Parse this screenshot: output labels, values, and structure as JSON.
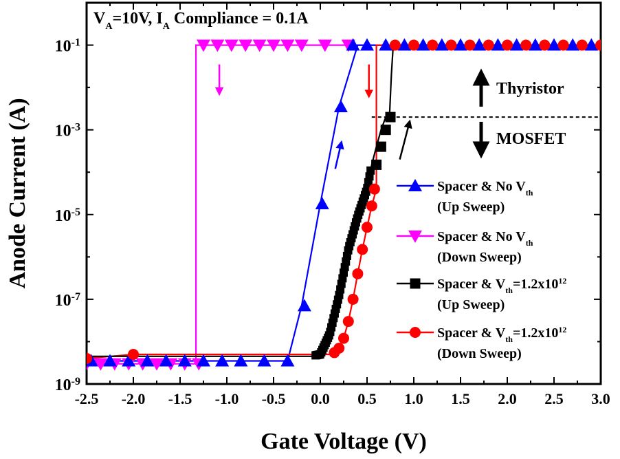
{
  "chart_data": {
    "type": "line",
    "title": "",
    "annotation_top": {
      "parts": [
        {
          "t": "V"
        },
        {
          "t": "A",
          "sub": true
        },
        {
          "t": "=10V, I"
        },
        {
          "t": "A",
          "sub": true
        },
        {
          "t": " Compliance = 0.1A"
        }
      ]
    },
    "xlabel": "Gate Voltage (V)",
    "ylabel": "Anode Current (A)",
    "xlim": [
      -2.5,
      3.0
    ],
    "ylim": [
      1e-09,
      1
    ],
    "yscale": "log",
    "x_ticks": [
      "-2.5",
      "-2.0",
      "-1.5",
      "-1.0",
      "-0.5",
      "0.0",
      "0.5",
      "1.0",
      "1.5",
      "2.0",
      "2.5",
      "3.0"
    ],
    "y_ticks": [
      {
        "base": "10",
        "exp": "-9"
      },
      {
        "base": "10",
        "exp": "-7"
      },
      {
        "base": "10",
        "exp": "-5"
      },
      {
        "base": "10",
        "exp": "-3"
      },
      {
        "base": "10",
        "exp": "-1"
      }
    ],
    "threshold_line": {
      "y": 0.002,
      "x_start": 0.55,
      "x_end": 3.0,
      "style": "dashed"
    },
    "region_labels": {
      "above": "Thyristor",
      "below": "MOSFET"
    },
    "series": [
      {
        "name_parts": [
          {
            "t": "Spacer & No V"
          },
          {
            "t": "th",
            "sub": true
          }
        ],
        "name_line2": "(Up Sweep)",
        "color": "#0000ff",
        "marker": "triangle-up",
        "x": [
          -2.5,
          -2.3,
          -2.1,
          -1.9,
          -1.7,
          -1.5,
          -1.3,
          -1.1,
          -0.9,
          -0.7,
          -0.5,
          -0.35,
          -0.2,
          0.0,
          0.2,
          0.4,
          0.6,
          0.8,
          1.0,
          1.2,
          1.4,
          1.6,
          1.8,
          2.0,
          2.2,
          2.4,
          2.6,
          2.8,
          3.0
        ],
        "y": [
          3.5e-09,
          3.5e-09,
          3.5e-09,
          3.5e-09,
          3.5e-09,
          3.5e-09,
          3.5e-09,
          3.5e-09,
          3.5e-09,
          3.5e-09,
          3.5e-09,
          3.5e-09,
          7e-08,
          1.8e-05,
          0.0035,
          0.1,
          0.1,
          0.1,
          0.1,
          0.1,
          0.1,
          0.1,
          0.1,
          0.1,
          0.1,
          0.1,
          0.1,
          0.1,
          0.1
        ],
        "markers": [
          [
            -2.45,
            3.5e-09
          ],
          [
            -2.25,
            3.5e-09
          ],
          [
            -2.05,
            3.5e-09
          ],
          [
            -1.85,
            3.5e-09
          ],
          [
            -1.65,
            3.5e-09
          ],
          [
            -1.45,
            3.5e-09
          ],
          [
            -1.25,
            3.5e-09
          ],
          [
            -1.05,
            3.5e-09
          ],
          [
            -0.85,
            3.5e-09
          ],
          [
            -0.6,
            3.5e-09
          ],
          [
            -0.35,
            3.5e-09
          ],
          [
            -0.17,
            7e-08
          ],
          [
            0.02,
            1.8e-05
          ],
          [
            0.22,
            0.0035
          ],
          [
            0.35,
            0.1
          ],
          [
            0.5,
            0.1
          ],
          [
            0.7,
            0.1
          ],
          [
            0.9,
            0.1
          ],
          [
            1.1,
            0.1
          ],
          [
            1.3,
            0.1
          ],
          [
            1.5,
            0.1
          ],
          [
            1.7,
            0.1
          ],
          [
            1.9,
            0.1
          ],
          [
            2.1,
            0.1
          ],
          [
            2.3,
            0.1
          ],
          [
            2.5,
            0.1
          ],
          [
            2.7,
            0.1
          ],
          [
            2.9,
            0.1
          ]
        ]
      },
      {
        "name_parts": [
          {
            "t": "Spacer & No V"
          },
          {
            "t": "th",
            "sub": true
          }
        ],
        "name_line2": "(Down Sweep)",
        "color": "#ff00ff",
        "marker": "triangle-down",
        "x": [
          3.0,
          2.5,
          2.0,
          1.5,
          1.0,
          0.5,
          0.0,
          -0.5,
          -1.0,
          -1.25,
          -1.25,
          -1.33,
          -1.33,
          -1.5,
          -2.0,
          -2.5
        ],
        "y": [
          0.1,
          0.1,
          0.1,
          0.1,
          0.1,
          0.1,
          0.1,
          0.1,
          0.1,
          0.1,
          0.1,
          0.1,
          3e-09,
          3e-09,
          3e-09,
          3e-09
        ],
        "markers": [
          [
            -1.25,
            0.1
          ],
          [
            -1.1,
            0.1
          ],
          [
            -0.95,
            0.1
          ],
          [
            -0.8,
            0.1
          ],
          [
            -0.65,
            0.1
          ],
          [
            -0.5,
            0.1
          ],
          [
            -0.35,
            0.1
          ],
          [
            -0.2,
            0.1
          ],
          [
            0.05,
            0.1
          ],
          [
            0.3,
            0.1
          ],
          [
            -1.3,
            3e-09
          ],
          [
            -1.45,
            3e-09
          ],
          [
            -1.6,
            3e-09
          ],
          [
            -1.75,
            3e-09
          ],
          [
            -1.9,
            3e-09
          ],
          [
            -2.05,
            3e-09
          ],
          [
            -2.2,
            3e-09
          ],
          [
            -2.35,
            3e-09
          ],
          [
            -2.5,
            3e-09
          ]
        ]
      },
      {
        "name_parts": [
          {
            "t": "Spacer & V"
          },
          {
            "t": "th",
            "sub": true
          },
          {
            "t": "=1.2x10"
          },
          {
            "t": "12",
            "sup": true
          }
        ],
        "name_line2": "(Up Sweep)",
        "color": "#000000",
        "marker": "square",
        "x": [
          -2.5,
          -2.0,
          -1.5,
          -1.0,
          -0.5,
          -0.1,
          0.0,
          0.1,
          0.2,
          0.3,
          0.4,
          0.5,
          0.55,
          0.6,
          0.65,
          0.7,
          0.74,
          0.76,
          0.78,
          0.8,
          1.0,
          1.5,
          2.0,
          2.5,
          3.0
        ],
        "y": [
          4.5e-09,
          4.5e-09,
          4.5e-09,
          4.5e-09,
          4.5e-09,
          4.5e-09,
          5e-09,
          1.5e-08,
          1.2e-07,
          1.5e-06,
          9e-06,
          4e-05,
          0.00015,
          0.0004,
          0.001,
          0.002,
          0.002,
          0.02,
          0.1,
          0.1,
          0.1,
          0.1,
          0.1,
          0.1,
          0.1
        ],
        "markers": [
          [
            0.6,
            0.00015
          ],
          [
            0.65,
            0.0004
          ],
          [
            0.7,
            0.001
          ],
          [
            0.75,
            0.002
          ]
        ]
      },
      {
        "name_parts": [
          {
            "t": "Spacer & V"
          },
          {
            "t": "th",
            "sub": true
          },
          {
            "t": "=1.2x10"
          },
          {
            "t": "12",
            "sup": true
          }
        ],
        "name_line2": "(Down Sweep)",
        "color": "#ff0000",
        "marker": "circle",
        "x": [
          3.0,
          2.5,
          2.0,
          1.5,
          1.0,
          0.8,
          0.62,
          0.6,
          0.6,
          0.55,
          0.5,
          0.45,
          0.4,
          0.35,
          0.3,
          0.25,
          0.2,
          0.15,
          0.1,
          0.05,
          0.0,
          -0.1,
          -0.5,
          -1.0,
          -1.5,
          -2.0,
          -2.5
        ],
        "y": [
          0.1,
          0.1,
          0.1,
          0.1,
          0.1,
          0.1,
          0.1,
          0.1,
          4e-05,
          1.6e-05,
          5e-06,
          1.5e-06,
          4e-07,
          1e-07,
          3e-08,
          1.2e-08,
          7e-09,
          5.5e-09,
          5e-09,
          5e-09,
          5e-09,
          5e-09,
          5e-09,
          5e-09,
          5e-09,
          5e-09,
          4e-09
        ],
        "markers": [
          [
            0.58,
            4e-05
          ],
          [
            0.55,
            1.6e-05
          ],
          [
            0.5,
            5e-06
          ],
          [
            0.45,
            1.5e-06
          ],
          [
            0.4,
            4e-07
          ],
          [
            0.35,
            1e-07
          ],
          [
            0.3,
            3e-08
          ],
          [
            0.25,
            1.2e-08
          ],
          [
            0.2,
            7e-09
          ],
          [
            0.15,
            5.5e-09
          ],
          [
            -2.0,
            5e-09
          ],
          [
            -2.5,
            4e-09
          ],
          [
            0.8,
            0.1
          ],
          [
            1.0,
            0.1
          ],
          [
            1.2,
            0.1
          ],
          [
            1.4,
            0.1
          ],
          [
            1.6,
            0.1
          ],
          [
            1.8,
            0.1
          ],
          [
            2.0,
            0.1
          ],
          [
            2.2,
            0.1
          ],
          [
            2.4,
            0.1
          ],
          [
            2.6,
            0.1
          ],
          [
            2.8,
            0.1
          ],
          [
            3.0,
            0.1
          ]
        ]
      }
    ],
    "arrows": [
      {
        "color": "#ff00ff",
        "from": [
          -1.08,
          0.035
        ],
        "to": [
          -1.08,
          0.008
        ]
      },
      {
        "color": "#ff0000",
        "from": [
          0.52,
          0.035
        ],
        "to": [
          0.52,
          0.007
        ]
      },
      {
        "color": "#0000ff",
        "from": [
          0.16,
          0.00012
        ],
        "to": [
          0.22,
          0.00045
        ]
      },
      {
        "color": "#000000",
        "from": [
          0.85,
          0.0002
        ],
        "to": [
          0.95,
          0.0014
        ]
      }
    ]
  }
}
